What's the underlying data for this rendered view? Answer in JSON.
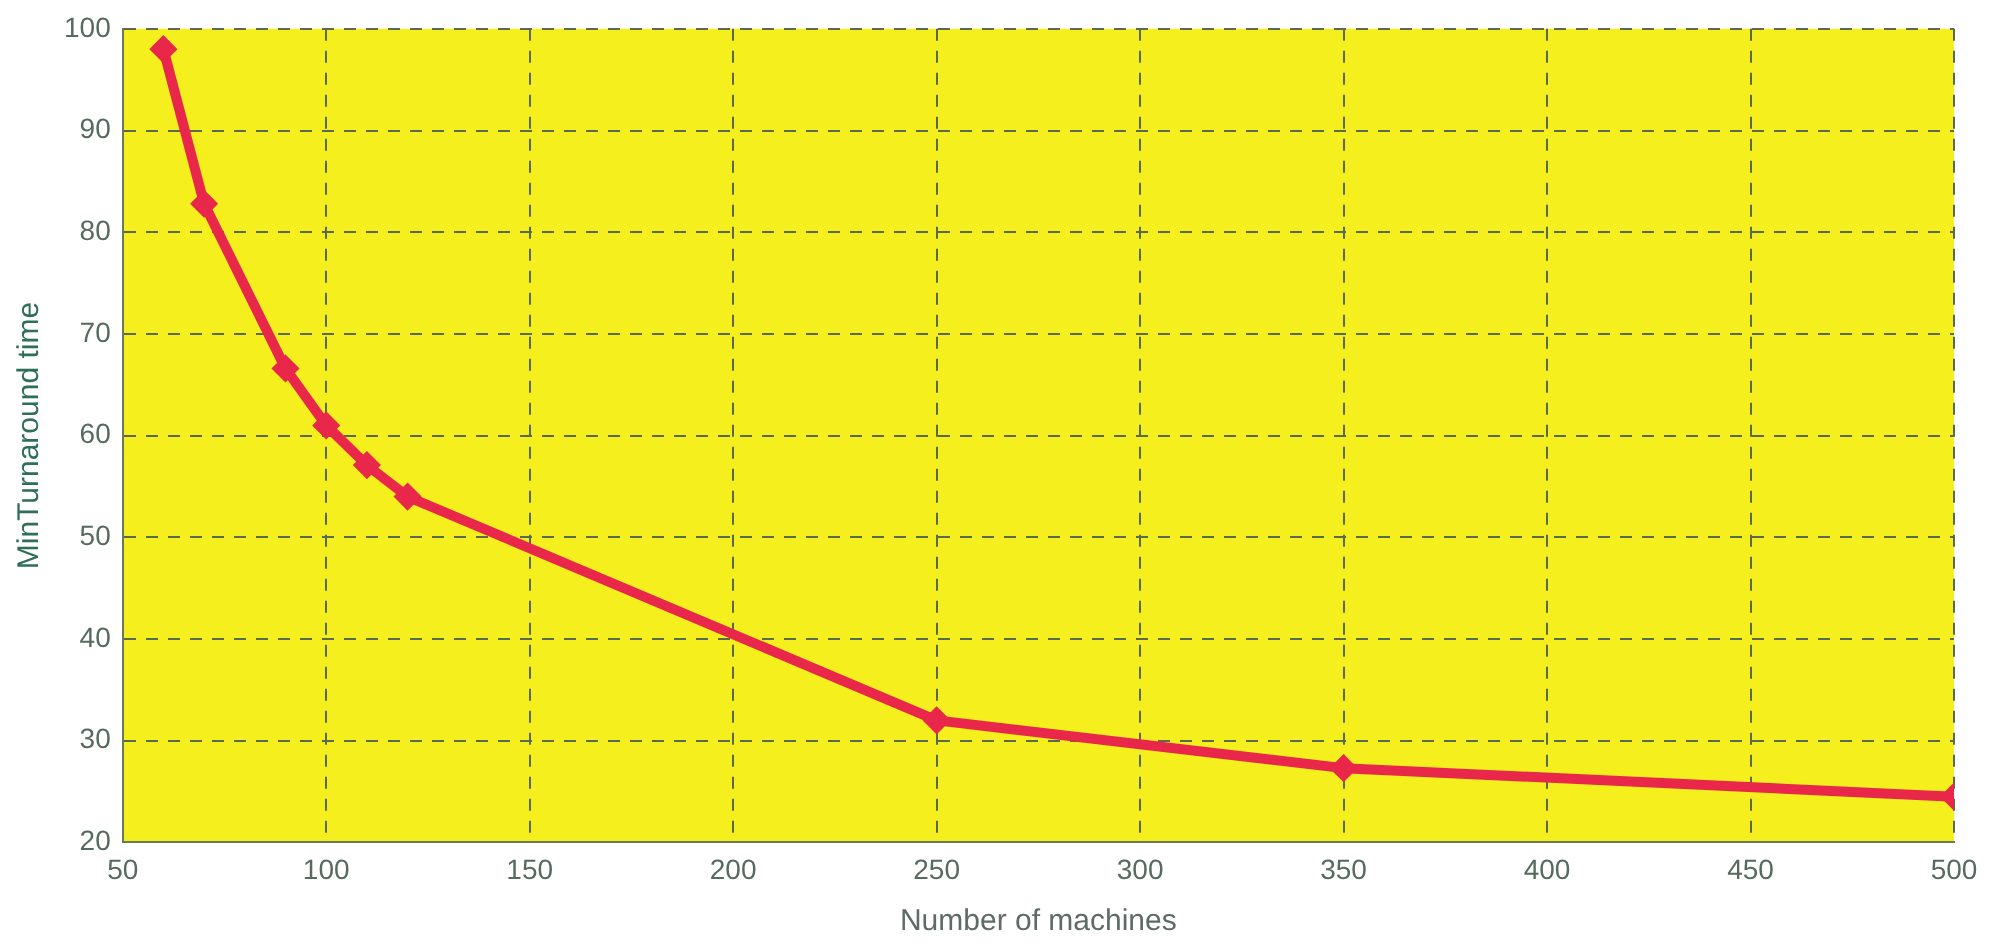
{
  "chart_data": {
    "type": "line",
    "xlabel": "Number of machines",
    "ylabel": "MinTurnaround time",
    "x": [
      60,
      70,
      90,
      100,
      110,
      120,
      250,
      350,
      500
    ],
    "series": [
      {
        "color": "#e8274a",
        "values": [
          98,
          82.8,
          66.6,
          61,
          57.1,
          54,
          32,
          27.3,
          24.5
        ]
      }
    ],
    "xlim": [
      50,
      500
    ],
    "xticks": [
      50,
      100,
      150,
      200,
      250,
      300,
      350,
      400,
      450,
      500
    ],
    "ylim": [
      20,
      100
    ],
    "yticks": [
      20,
      30,
      40,
      50,
      60,
      70,
      80,
      90,
      100
    ],
    "grid": true,
    "marker": "diamond",
    "line_style": "solid",
    "legend": false
  }
}
